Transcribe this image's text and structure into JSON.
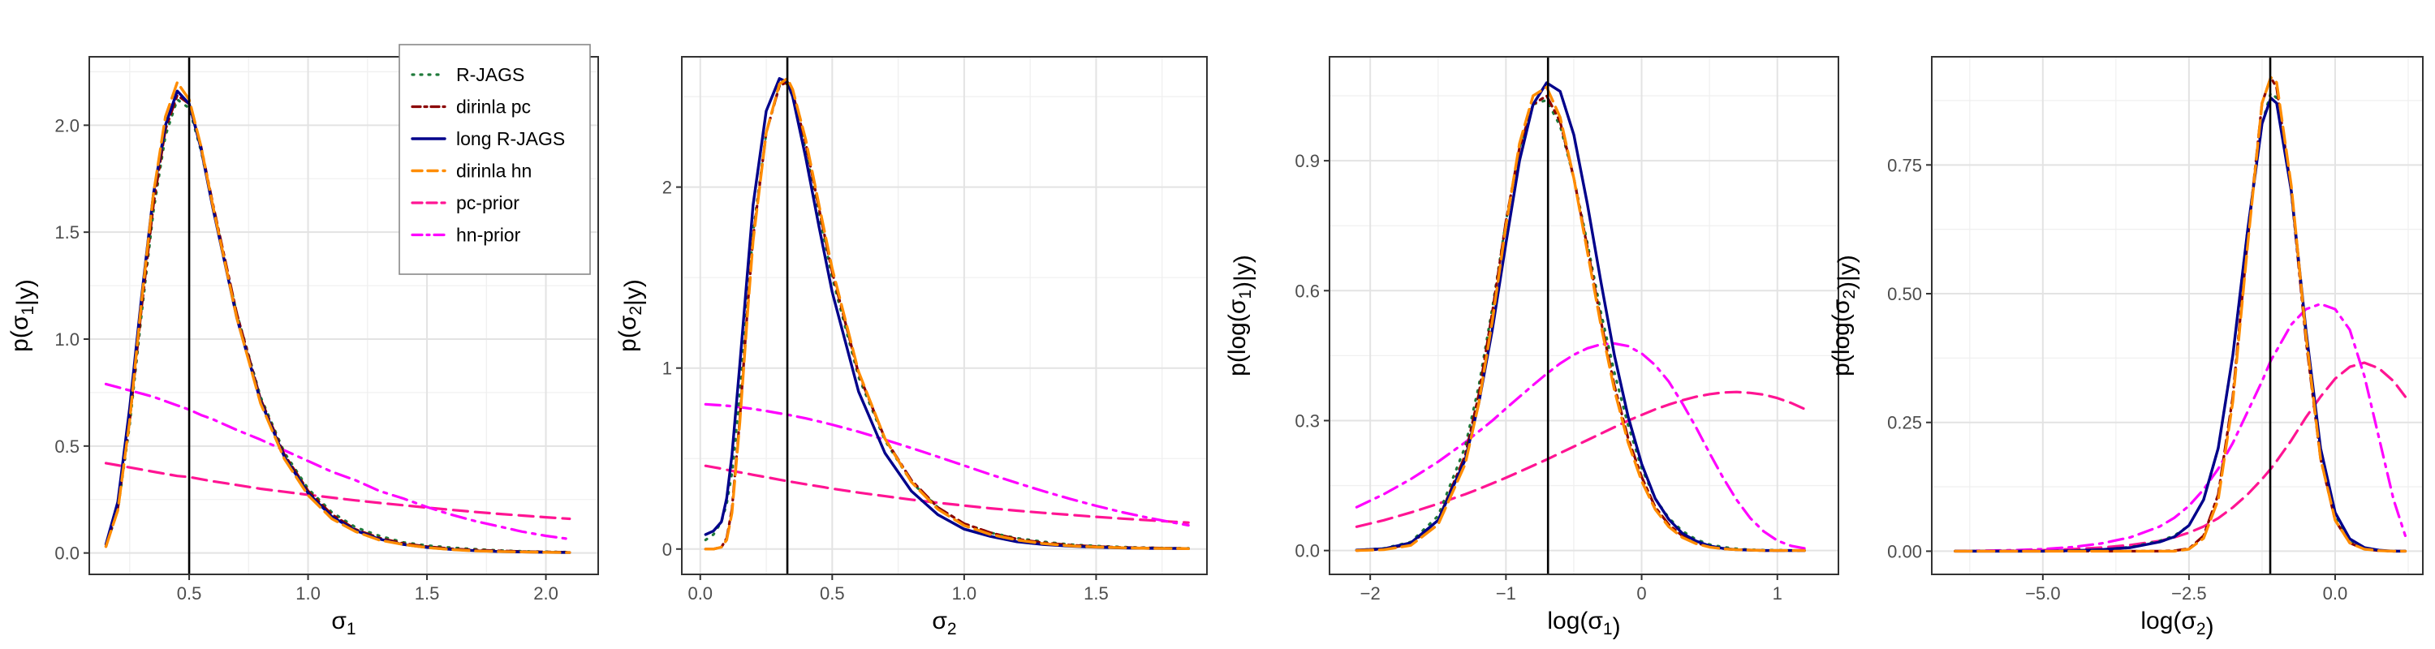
{
  "colors": {
    "R-JAGS": "#1f7a3a",
    "dirinla pc": "#8b0000",
    "long R-JAGS": "#00008b",
    "dirinla hn": "#ff8c00",
    "pc-prior": "#ff1493",
    "hn-prior": "#ff00ff",
    "vline": "#000000"
  },
  "legend": {
    "placement": "top-right of first panel",
    "entries": [
      "R-JAGS",
      "dirinla pc",
      "long R-JAGS",
      "dirinla hn",
      "pc-prior",
      "hn-prior"
    ]
  },
  "chart_data": [
    {
      "type": "line",
      "xlabel": "σ₁",
      "ylabel": "p(σ₁|y)",
      "xlim": [
        0.08,
        2.22
      ],
      "ylim": [
        -0.1,
        2.32
      ],
      "xticks": [
        0.5,
        1.0,
        1.5,
        2.0
      ],
      "xtick_labels": [
        "0.5",
        "1.0",
        "1.5",
        "2.0"
      ],
      "yticks": [
        0.0,
        0.5,
        1.0,
        1.5,
        2.0
      ],
      "ytick_labels": [
        "0.0",
        "0.5",
        "1.0",
        "1.5",
        "2.0"
      ],
      "vline": 0.5,
      "grid": true,
      "x": [
        0.15,
        0.2,
        0.25,
        0.3,
        0.35,
        0.4,
        0.45,
        0.5,
        0.55,
        0.6,
        0.7,
        0.8,
        0.9,
        1.0,
        1.1,
        1.2,
        1.3,
        1.4,
        1.5,
        1.6,
        1.7,
        1.8,
        1.9,
        2.0,
        2.1
      ],
      "series": [
        {
          "name": "R-JAGS",
          "values": [
            0.03,
            0.2,
            0.6,
            1.12,
            1.6,
            1.95,
            2.12,
            2.08,
            1.88,
            1.62,
            1.12,
            0.73,
            0.47,
            0.3,
            0.19,
            0.12,
            0.08,
            0.05,
            0.035,
            0.025,
            0.018,
            0.012,
            0.008,
            0.006,
            0.004
          ]
        },
        {
          "name": "dirinla pc",
          "values": [
            0.03,
            0.21,
            0.62,
            1.15,
            1.63,
            1.98,
            2.14,
            2.1,
            1.9,
            1.63,
            1.12,
            0.72,
            0.46,
            0.29,
            0.18,
            0.11,
            0.07,
            0.045,
            0.03,
            0.02,
            0.014,
            0.01,
            0.007,
            0.005,
            0.003
          ]
        },
        {
          "name": "long R-JAGS",
          "values": [
            0.04,
            0.24,
            0.68,
            1.2,
            1.68,
            2.0,
            2.16,
            2.1,
            1.89,
            1.61,
            1.1,
            0.71,
            0.45,
            0.28,
            0.17,
            0.105,
            0.065,
            0.04,
            0.026,
            0.017,
            0.011,
            0.007,
            0.005,
            0.003,
            0.002
          ]
        },
        {
          "name": "dirinla hn",
          "values": [
            0.03,
            0.2,
            0.62,
            1.18,
            1.68,
            2.04,
            2.2,
            2.12,
            1.9,
            1.62,
            1.1,
            0.7,
            0.44,
            0.27,
            0.16,
            0.1,
            0.06,
            0.04,
            0.025,
            0.016,
            0.01,
            0.007,
            0.005,
            0.003,
            0.002
          ]
        },
        {
          "name": "pc-prior",
          "values": [
            0.42,
            0.41,
            0.4,
            0.39,
            0.38,
            0.37,
            0.36,
            0.355,
            0.345,
            0.335,
            0.318,
            0.3,
            0.286,
            0.272,
            0.259,
            0.246,
            0.234,
            0.223,
            0.212,
            0.202,
            0.192,
            0.183,
            0.175,
            0.167,
            0.16
          ]
        },
        {
          "name": "hn-prior",
          "values": [
            0.79,
            0.775,
            0.76,
            0.745,
            0.73,
            0.71,
            0.69,
            0.67,
            0.645,
            0.625,
            0.575,
            0.53,
            0.48,
            0.43,
            0.38,
            0.34,
            0.29,
            0.255,
            0.215,
            0.18,
            0.15,
            0.125,
            0.1,
            0.08,
            0.065
          ]
        }
      ]
    },
    {
      "type": "line",
      "xlabel": "σ₂",
      "ylabel": "p(σ₂|y)",
      "xlim": [
        -0.07,
        1.92
      ],
      "ylim": [
        -0.14,
        2.72
      ],
      "xticks": [
        0.0,
        0.5,
        1.0,
        1.5
      ],
      "xtick_labels": [
        "0.0",
        "0.5",
        "1.0",
        "1.5"
      ],
      "yticks": [
        0,
        1,
        2
      ],
      "ytick_labels": [
        "0",
        "1",
        "2"
      ],
      "vline": 0.33,
      "grid": true,
      "x": [
        0.02,
        0.05,
        0.08,
        0.1,
        0.12,
        0.15,
        0.18,
        0.2,
        0.25,
        0.3,
        0.33,
        0.35,
        0.4,
        0.45,
        0.5,
        0.6,
        0.7,
        0.8,
        0.9,
        1.0,
        1.1,
        1.2,
        1.3,
        1.4,
        1.5,
        1.6,
        1.7,
        1.8,
        1.85
      ],
      "series": [
        {
          "name": "R-JAGS",
          "values": [
            0.05,
            0.08,
            0.15,
            0.25,
            0.42,
            0.85,
            1.4,
            1.75,
            2.3,
            2.56,
            2.57,
            2.5,
            2.2,
            1.85,
            1.5,
            0.95,
            0.6,
            0.37,
            0.23,
            0.14,
            0.09,
            0.06,
            0.04,
            0.025,
            0.017,
            0.011,
            0.007,
            0.005,
            0.004
          ]
        },
        {
          "name": "dirinla pc",
          "values": [
            0.0,
            0.0,
            0.01,
            0.06,
            0.22,
            0.72,
            1.35,
            1.72,
            2.3,
            2.56,
            2.58,
            2.52,
            2.24,
            1.88,
            1.53,
            0.97,
            0.61,
            0.38,
            0.23,
            0.14,
            0.09,
            0.055,
            0.035,
            0.022,
            0.014,
            0.009,
            0.006,
            0.004,
            0.003
          ]
        },
        {
          "name": "long R-JAGS",
          "values": [
            0.08,
            0.1,
            0.15,
            0.28,
            0.52,
            1.02,
            1.55,
            1.9,
            2.42,
            2.6,
            2.58,
            2.5,
            2.16,
            1.78,
            1.42,
            0.87,
            0.53,
            0.32,
            0.19,
            0.11,
            0.07,
            0.04,
            0.025,
            0.016,
            0.01,
            0.006,
            0.004,
            0.003,
            0.002
          ]
        },
        {
          "name": "dirinla hn",
          "values": [
            0.0,
            0.0,
            0.01,
            0.05,
            0.2,
            0.7,
            1.32,
            1.7,
            2.3,
            2.57,
            2.6,
            2.54,
            2.26,
            1.9,
            1.55,
            0.98,
            0.61,
            0.37,
            0.22,
            0.13,
            0.08,
            0.05,
            0.03,
            0.018,
            0.011,
            0.007,
            0.004,
            0.003,
            0.002
          ]
        },
        {
          "name": "pc-prior",
          "values": [
            0.46,
            0.452,
            0.444,
            0.438,
            0.432,
            0.424,
            0.416,
            0.41,
            0.397,
            0.383,
            0.375,
            0.37,
            0.358,
            0.346,
            0.334,
            0.312,
            0.292,
            0.273,
            0.256,
            0.24,
            0.225,
            0.212,
            0.2,
            0.189,
            0.178,
            0.168,
            0.159,
            0.15,
            0.146
          ]
        },
        {
          "name": "hn-prior",
          "values": [
            0.8,
            0.797,
            0.794,
            0.792,
            0.789,
            0.784,
            0.778,
            0.774,
            0.763,
            0.75,
            0.742,
            0.737,
            0.722,
            0.705,
            0.687,
            0.648,
            0.604,
            0.558,
            0.51,
            0.461,
            0.412,
            0.365,
            0.32,
            0.278,
            0.239,
            0.203,
            0.172,
            0.144,
            0.131
          ]
        }
      ]
    },
    {
      "type": "line",
      "xlabel": "log(σ₁)",
      "ylabel": "p(log(σ₁)|y)",
      "xlim": [
        -2.3,
        1.45
      ],
      "ylim": [
        -0.055,
        1.14
      ],
      "xticks": [
        -2,
        -1,
        0,
        1
      ],
      "xtick_labels": [
        "−2",
        "−1",
        "0",
        "1"
      ],
      "yticks": [
        0.0,
        0.3,
        0.6,
        0.9
      ],
      "ytick_labels": [
        "0.0",
        "0.3",
        "0.6",
        "0.9"
      ],
      "vline": -0.69,
      "grid": true,
      "x": [
        -2.1,
        -1.9,
        -1.7,
        -1.5,
        -1.3,
        -1.2,
        -1.1,
        -1.0,
        -0.9,
        -0.8,
        -0.7,
        -0.6,
        -0.5,
        -0.4,
        -0.3,
        -0.2,
        -0.1,
        0.0,
        0.1,
        0.2,
        0.3,
        0.4,
        0.5,
        0.6,
        0.7,
        0.8,
        0.9,
        1.0,
        1.1,
        1.2
      ],
      "series": [
        {
          "name": "R-JAGS",
          "values": [
            0.001,
            0.005,
            0.02,
            0.08,
            0.24,
            0.38,
            0.56,
            0.76,
            0.93,
            1.03,
            1.04,
            0.98,
            0.86,
            0.71,
            0.55,
            0.41,
            0.29,
            0.19,
            0.12,
            0.075,
            0.045,
            0.026,
            0.014,
            0.008,
            0.004,
            0.002,
            0.001,
            0.001,
            0.0,
            0.0
          ]
        },
        {
          "name": "dirinla pc",
          "values": [
            0.0,
            0.003,
            0.015,
            0.07,
            0.22,
            0.36,
            0.55,
            0.76,
            0.93,
            1.03,
            1.05,
            0.99,
            0.86,
            0.7,
            0.53,
            0.38,
            0.26,
            0.17,
            0.1,
            0.06,
            0.034,
            0.018,
            0.009,
            0.004,
            0.002,
            0.001,
            0.0,
            0.0,
            0.0,
            0.0
          ]
        },
        {
          "name": "long R-JAGS",
          "values": [
            0.001,
            0.004,
            0.018,
            0.07,
            0.21,
            0.34,
            0.51,
            0.71,
            0.9,
            1.03,
            1.08,
            1.06,
            0.96,
            0.8,
            0.62,
            0.45,
            0.31,
            0.2,
            0.12,
            0.072,
            0.04,
            0.022,
            0.011,
            0.005,
            0.002,
            0.001,
            0.0,
            0.0,
            0.0,
            0.0
          ]
        },
        {
          "name": "dirinla hn",
          "values": [
            0.0,
            0.002,
            0.012,
            0.06,
            0.2,
            0.34,
            0.53,
            0.75,
            0.94,
            1.05,
            1.07,
            1.0,
            0.86,
            0.69,
            0.52,
            0.37,
            0.25,
            0.16,
            0.095,
            0.055,
            0.03,
            0.016,
            0.008,
            0.004,
            0.002,
            0.001,
            0.0,
            0.0,
            0.0,
            0.0
          ]
        },
        {
          "name": "pc-prior",
          "values": [
            0.055,
            0.07,
            0.088,
            0.108,
            0.13,
            0.142,
            0.155,
            0.168,
            0.182,
            0.196,
            0.21,
            0.225,
            0.24,
            0.255,
            0.27,
            0.285,
            0.3,
            0.313,
            0.326,
            0.337,
            0.347,
            0.355,
            0.361,
            0.365,
            0.366,
            0.364,
            0.36,
            0.352,
            0.341,
            0.327
          ]
        },
        {
          "name": "hn-prior",
          "values": [
            0.1,
            0.13,
            0.165,
            0.205,
            0.25,
            0.275,
            0.3,
            0.328,
            0.355,
            0.382,
            0.408,
            0.432,
            0.452,
            0.467,
            0.476,
            0.478,
            0.472,
            0.455,
            0.428,
            0.39,
            0.34,
            0.285,
            0.225,
            0.168,
            0.117,
            0.075,
            0.044,
            0.023,
            0.011,
            0.005
          ]
        }
      ]
    },
    {
      "type": "line",
      "xlabel": "log(σ₂)",
      "ylabel": "p(log(σ₂)|y)",
      "xlim": [
        -6.9,
        1.5
      ],
      "ylim": [
        -0.045,
        0.96
      ],
      "xticks": [
        -5.0,
        -2.5,
        0.0
      ],
      "xtick_labels": [
        "−5.0",
        "−2.5",
        "0.0"
      ],
      "yticks": [
        0.0,
        0.25,
        0.5,
        0.75
      ],
      "ytick_labels": [
        "0.00",
        "0.25",
        "0.50",
        "0.75"
      ],
      "vline": -1.11,
      "grid": true,
      "x": [
        -6.5,
        -6.0,
        -5.5,
        -5.0,
        -4.5,
        -4.0,
        -3.5,
        -3.0,
        -2.75,
        -2.5,
        -2.25,
        -2.0,
        -1.75,
        -1.5,
        -1.25,
        -1.1,
        -1.0,
        -0.75,
        -0.5,
        -0.25,
        0.0,
        0.25,
        0.5,
        0.75,
        1.0,
        1.2
      ],
      "series": [
        {
          "name": "R-JAGS",
          "values": [
            0.0,
            0.0,
            0.0,
            0.0,
            0.001,
            0.003,
            0.008,
            0.02,
            0.03,
            0.05,
            0.1,
            0.2,
            0.38,
            0.62,
            0.83,
            0.89,
            0.88,
            0.7,
            0.42,
            0.19,
            0.07,
            0.022,
            0.006,
            0.001,
            0.0,
            0.0
          ]
        },
        {
          "name": "dirinla pc",
          "values": [
            0.0,
            0.0,
            0.0,
            0.0,
            0.0,
            0.0,
            0.0,
            0.0,
            0.001,
            0.005,
            0.03,
            0.11,
            0.3,
            0.6,
            0.87,
            0.92,
            0.9,
            0.7,
            0.41,
            0.18,
            0.06,
            0.016,
            0.004,
            0.001,
            0.0,
            0.0
          ]
        },
        {
          "name": "long R-JAGS",
          "values": [
            0.0,
            0.0,
            0.0,
            0.0,
            0.001,
            0.003,
            0.007,
            0.018,
            0.028,
            0.05,
            0.1,
            0.2,
            0.38,
            0.62,
            0.83,
            0.88,
            0.87,
            0.7,
            0.43,
            0.2,
            0.075,
            0.024,
            0.007,
            0.002,
            0.0,
            0.0
          ]
        },
        {
          "name": "dirinla hn",
          "values": [
            0.0,
            0.0,
            0.0,
            0.0,
            0.0,
            0.0,
            0.0,
            0.0,
            0.0,
            0.004,
            0.025,
            0.1,
            0.29,
            0.59,
            0.87,
            0.92,
            0.91,
            0.71,
            0.42,
            0.18,
            0.06,
            0.016,
            0.004,
            0.001,
            0.0,
            0.0
          ]
        },
        {
          "name": "pc-prior",
          "values": [
            0.0,
            0.0,
            0.001,
            0.002,
            0.004,
            0.007,
            0.012,
            0.02,
            0.027,
            0.036,
            0.048,
            0.064,
            0.085,
            0.11,
            0.14,
            0.16,
            0.175,
            0.215,
            0.26,
            0.3,
            0.335,
            0.358,
            0.366,
            0.355,
            0.33,
            0.3
          ]
        },
        {
          "name": "hn-prior",
          "values": [
            0.0,
            0.001,
            0.002,
            0.004,
            0.008,
            0.015,
            0.027,
            0.048,
            0.065,
            0.088,
            0.12,
            0.16,
            0.21,
            0.27,
            0.33,
            0.37,
            0.39,
            0.44,
            0.47,
            0.48,
            0.47,
            0.43,
            0.34,
            0.22,
            0.1,
            0.03
          ]
        }
      ]
    }
  ]
}
